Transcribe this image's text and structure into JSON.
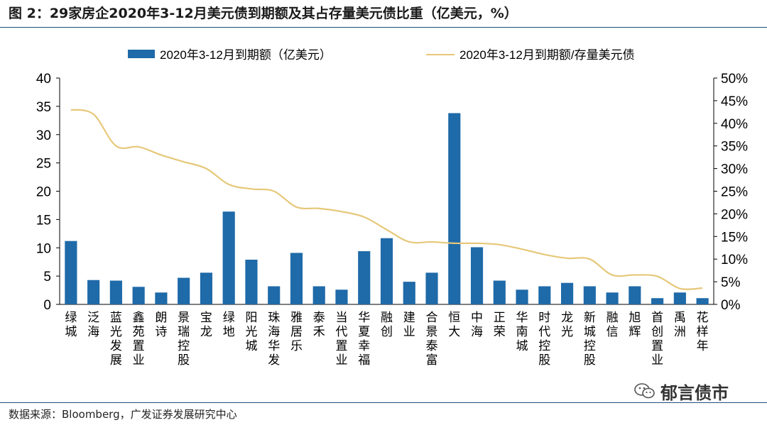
{
  "figure_title": "图 2：29家房企2020年3-12月美元债到期额及其占存量美元债比重（亿美元，%）",
  "source": "数据来源：Bloomberg，广发证券发展研究中心",
  "watermark": "郁言债市",
  "colors": {
    "bar": "#1f6aa8",
    "line": "#e6c87a",
    "rule": "#1f4e79"
  },
  "chart_data": {
    "type": "bar+line",
    "categories": [
      "绿城",
      "泛海",
      "蓝光发展",
      "鑫苑置业",
      "朗诗",
      "景瑞控股",
      "宝龙",
      "绿地",
      "阳光城",
      "珠海华发",
      "雅居乐",
      "泰禾",
      "当代置业",
      "华夏幸福",
      "融创",
      "建业",
      "合景泰富",
      "恒大",
      "中海",
      "正荣",
      "华南城",
      "时代控股",
      "龙光",
      "新城控股",
      "融信",
      "旭辉",
      "首创置业",
      "禹洲",
      "花样年"
    ],
    "series": [
      {
        "name": "2020年3-12月到期额（亿美元）",
        "type": "bar",
        "axis": "left",
        "values": [
          11.2,
          4.3,
          4.2,
          3.1,
          2.1,
          4.7,
          5.6,
          16.4,
          7.9,
          3.2,
          9.1,
          3.2,
          2.6,
          9.4,
          11.7,
          4.0,
          5.6,
          33.8,
          10.1,
          4.2,
          2.6,
          3.2,
          3.8,
          3.2,
          2.1,
          3.2,
          1.1,
          2.1,
          1.1
        ]
      },
      {
        "name": "2020年3-12月到期额/存量美元债",
        "type": "line",
        "axis": "right",
        "unit": "%",
        "values": [
          43.0,
          42.0,
          35.0,
          34.8,
          33.0,
          31.5,
          30.0,
          26.5,
          25.5,
          25.0,
          21.5,
          21.2,
          20.5,
          19.3,
          16.5,
          13.8,
          13.8,
          13.5,
          13.5,
          13.2,
          12.2,
          11.0,
          10.2,
          10.0,
          6.5,
          6.5,
          6.2,
          3.5,
          3.6
        ]
      }
    ],
    "y_left": {
      "lim": [
        0,
        40
      ],
      "ticks": [
        "0",
        "5",
        "10",
        "15",
        "20",
        "25",
        "30",
        "35",
        "40"
      ]
    },
    "y_right": {
      "lim": [
        0,
        50
      ],
      "ticks": [
        "0%",
        "5%",
        "10%",
        "15%",
        "20%",
        "25%",
        "30%",
        "35%",
        "40%",
        "45%",
        "50%"
      ]
    },
    "legend_position": "top",
    "grid": false
  }
}
